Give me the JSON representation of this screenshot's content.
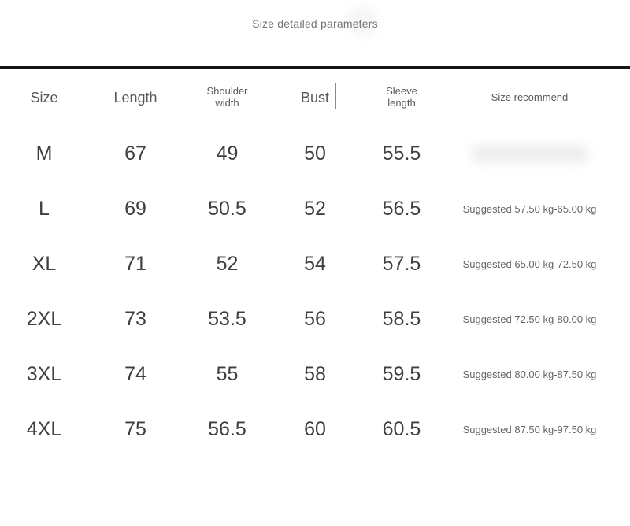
{
  "title": "Size detailed parameters",
  "table": {
    "headers": [
      {
        "label": "Size"
      },
      {
        "label": "Length"
      },
      {
        "label": "Shoulder\nwidth"
      },
      {
        "label": "Bust"
      },
      {
        "label": "Sleeve\nlength"
      },
      {
        "label": "Size recommend"
      }
    ],
    "rows": [
      {
        "size": "M",
        "length": "67",
        "shoulder": "49",
        "bust": "50",
        "sleeve": "55.5",
        "recommend": ""
      },
      {
        "size": "L",
        "length": "69",
        "shoulder": "50.5",
        "bust": "52",
        "sleeve": "56.5",
        "recommend": "Suggested 57.50 kg-65.00 kg"
      },
      {
        "size": "XL",
        "length": "71",
        "shoulder": "52",
        "bust": "54",
        "sleeve": "57.5",
        "recommend": "Suggested 65.00 kg-72.50 kg"
      },
      {
        "size": "2XL",
        "length": "73",
        "shoulder": "53.5",
        "bust": "56",
        "sleeve": "58.5",
        "recommend": "Suggested 72.50 kg-80.00 kg"
      },
      {
        "size": "3XL",
        "length": "74",
        "shoulder": "55",
        "bust": "58",
        "sleeve": "59.5",
        "recommend": "Suggested 80.00 kg-87.50 kg"
      },
      {
        "size": "4XL",
        "length": "75",
        "shoulder": "56.5",
        "bust": "60",
        "sleeve": "60.5",
        "recommend": "Suggested 87.50 kg-97.50 kg"
      }
    ]
  },
  "colors": {
    "divider": "#161616",
    "header_text": "#595959",
    "cell_text": "#3f3f3f",
    "recommend_text": "#666666",
    "title_text": "#757575"
  }
}
